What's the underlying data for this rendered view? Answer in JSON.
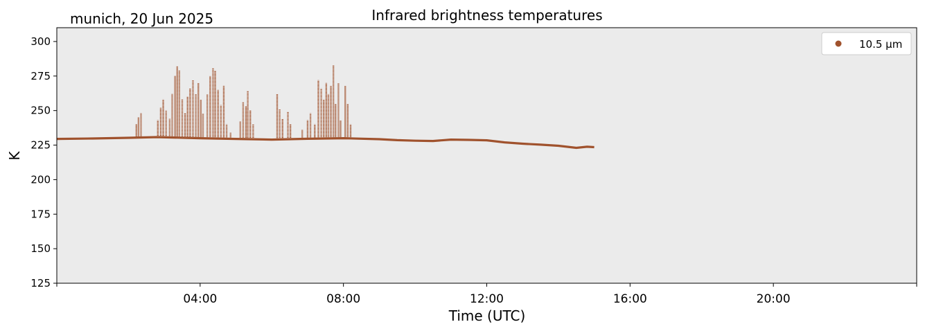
{
  "header": {
    "location_date": "munich, 20 Jun 2025"
  },
  "chart_data": {
    "type": "scatter",
    "title": "Infrared brightness temperatures",
    "xlabel": "Time (UTC)",
    "ylabel": "K",
    "xlim_hours": [
      0,
      24
    ],
    "ylim": [
      125,
      310
    ],
    "x_ticks": [
      {
        "hour": 4,
        "label": "04:00"
      },
      {
        "hour": 8,
        "label": "08:00"
      },
      {
        "hour": 12,
        "label": "12:00"
      },
      {
        "hour": 16,
        "label": "16:00"
      },
      {
        "hour": 20,
        "label": "20:00"
      }
    ],
    "x_minor_ticks_hours": [
      0,
      24
    ],
    "y_ticks": [
      125,
      150,
      175,
      200,
      225,
      250,
      275,
      300
    ],
    "legend": {
      "placement": "top-right",
      "entries": [
        {
          "label": "10.5 µm",
          "color": "#a0522d"
        }
      ]
    },
    "background_color": "#ebebeb",
    "grid": false,
    "series": [
      {
        "name": "10.5 µm",
        "color": "#a0522d",
        "baseline": [
          {
            "t": 0.0,
            "k": 229.5
          },
          {
            "t": 1.0,
            "k": 229.8
          },
          {
            "t": 2.0,
            "k": 230.3
          },
          {
            "t": 2.8,
            "k": 230.8
          },
          {
            "t": 4.0,
            "k": 230.0
          },
          {
            "t": 5.0,
            "k": 229.5
          },
          {
            "t": 6.0,
            "k": 229.0
          },
          {
            "t": 7.0,
            "k": 229.6
          },
          {
            "t": 8.0,
            "k": 230.0
          },
          {
            "t": 9.0,
            "k": 229.3
          },
          {
            "t": 9.5,
            "k": 228.6
          },
          {
            "t": 10.0,
            "k": 228.2
          },
          {
            "t": 10.5,
            "k": 228.0
          },
          {
            "t": 11.0,
            "k": 229.0
          },
          {
            "t": 11.5,
            "k": 228.8
          },
          {
            "t": 12.0,
            "k": 228.5
          },
          {
            "t": 12.5,
            "k": 227.0
          },
          {
            "t": 13.0,
            "k": 226.0
          },
          {
            "t": 13.5,
            "k": 225.3
          },
          {
            "t": 14.0,
            "k": 224.5
          },
          {
            "t": 14.5,
            "k": 223.0
          },
          {
            "t": 14.8,
            "k": 223.8
          },
          {
            "t": 15.0,
            "k": 223.5
          }
        ],
        "spikes": [
          {
            "t": 2.22,
            "k": 240
          },
          {
            "t": 2.28,
            "k": 245
          },
          {
            "t": 2.35,
            "k": 248
          },
          {
            "t": 2.82,
            "k": 243
          },
          {
            "t": 2.9,
            "k": 252
          },
          {
            "t": 2.97,
            "k": 258
          },
          {
            "t": 3.05,
            "k": 250
          },
          {
            "t": 3.15,
            "k": 244
          },
          {
            "t": 3.22,
            "k": 262
          },
          {
            "t": 3.3,
            "k": 275
          },
          {
            "t": 3.36,
            "k": 282
          },
          {
            "t": 3.42,
            "k": 279
          },
          {
            "t": 3.5,
            "k": 258
          },
          {
            "t": 3.58,
            "k": 248
          },
          {
            "t": 3.65,
            "k": 260
          },
          {
            "t": 3.72,
            "k": 266
          },
          {
            "t": 3.8,
            "k": 272
          },
          {
            "t": 3.88,
            "k": 262
          },
          {
            "t": 3.95,
            "k": 270
          },
          {
            "t": 4.02,
            "k": 258
          },
          {
            "t": 4.08,
            "k": 248
          },
          {
            "t": 4.2,
            "k": 262
          },
          {
            "t": 4.28,
            "k": 275
          },
          {
            "t": 4.36,
            "k": 281
          },
          {
            "t": 4.42,
            "k": 279
          },
          {
            "t": 4.5,
            "k": 265
          },
          {
            "t": 4.58,
            "k": 254
          },
          {
            "t": 4.66,
            "k": 268
          },
          {
            "t": 4.74,
            "k": 240
          },
          {
            "t": 4.85,
            "k": 234
          },
          {
            "t": 5.12,
            "k": 242
          },
          {
            "t": 5.2,
            "k": 256
          },
          {
            "t": 5.28,
            "k": 253
          },
          {
            "t": 5.33,
            "k": 264
          },
          {
            "t": 5.4,
            "k": 250
          },
          {
            "t": 5.48,
            "k": 240
          },
          {
            "t": 6.15,
            "k": 262
          },
          {
            "t": 6.22,
            "k": 251
          },
          {
            "t": 6.3,
            "k": 244
          },
          {
            "t": 6.45,
            "k": 249
          },
          {
            "t": 6.52,
            "k": 240
          },
          {
            "t": 6.85,
            "k": 236
          },
          {
            "t": 7.0,
            "k": 243
          },
          {
            "t": 7.08,
            "k": 248
          },
          {
            "t": 7.2,
            "k": 240
          },
          {
            "t": 7.3,
            "k": 272
          },
          {
            "t": 7.38,
            "k": 266
          },
          {
            "t": 7.45,
            "k": 258
          },
          {
            "t": 7.52,
            "k": 270
          },
          {
            "t": 7.58,
            "k": 262
          },
          {
            "t": 7.65,
            "k": 268
          },
          {
            "t": 7.72,
            "k": 283
          },
          {
            "t": 7.78,
            "k": 255
          },
          {
            "t": 7.86,
            "k": 270
          },
          {
            "t": 7.92,
            "k": 243
          },
          {
            "t": 8.05,
            "k": 268
          },
          {
            "t": 8.12,
            "k": 255
          },
          {
            "t": 8.2,
            "k": 240
          }
        ]
      }
    ]
  }
}
